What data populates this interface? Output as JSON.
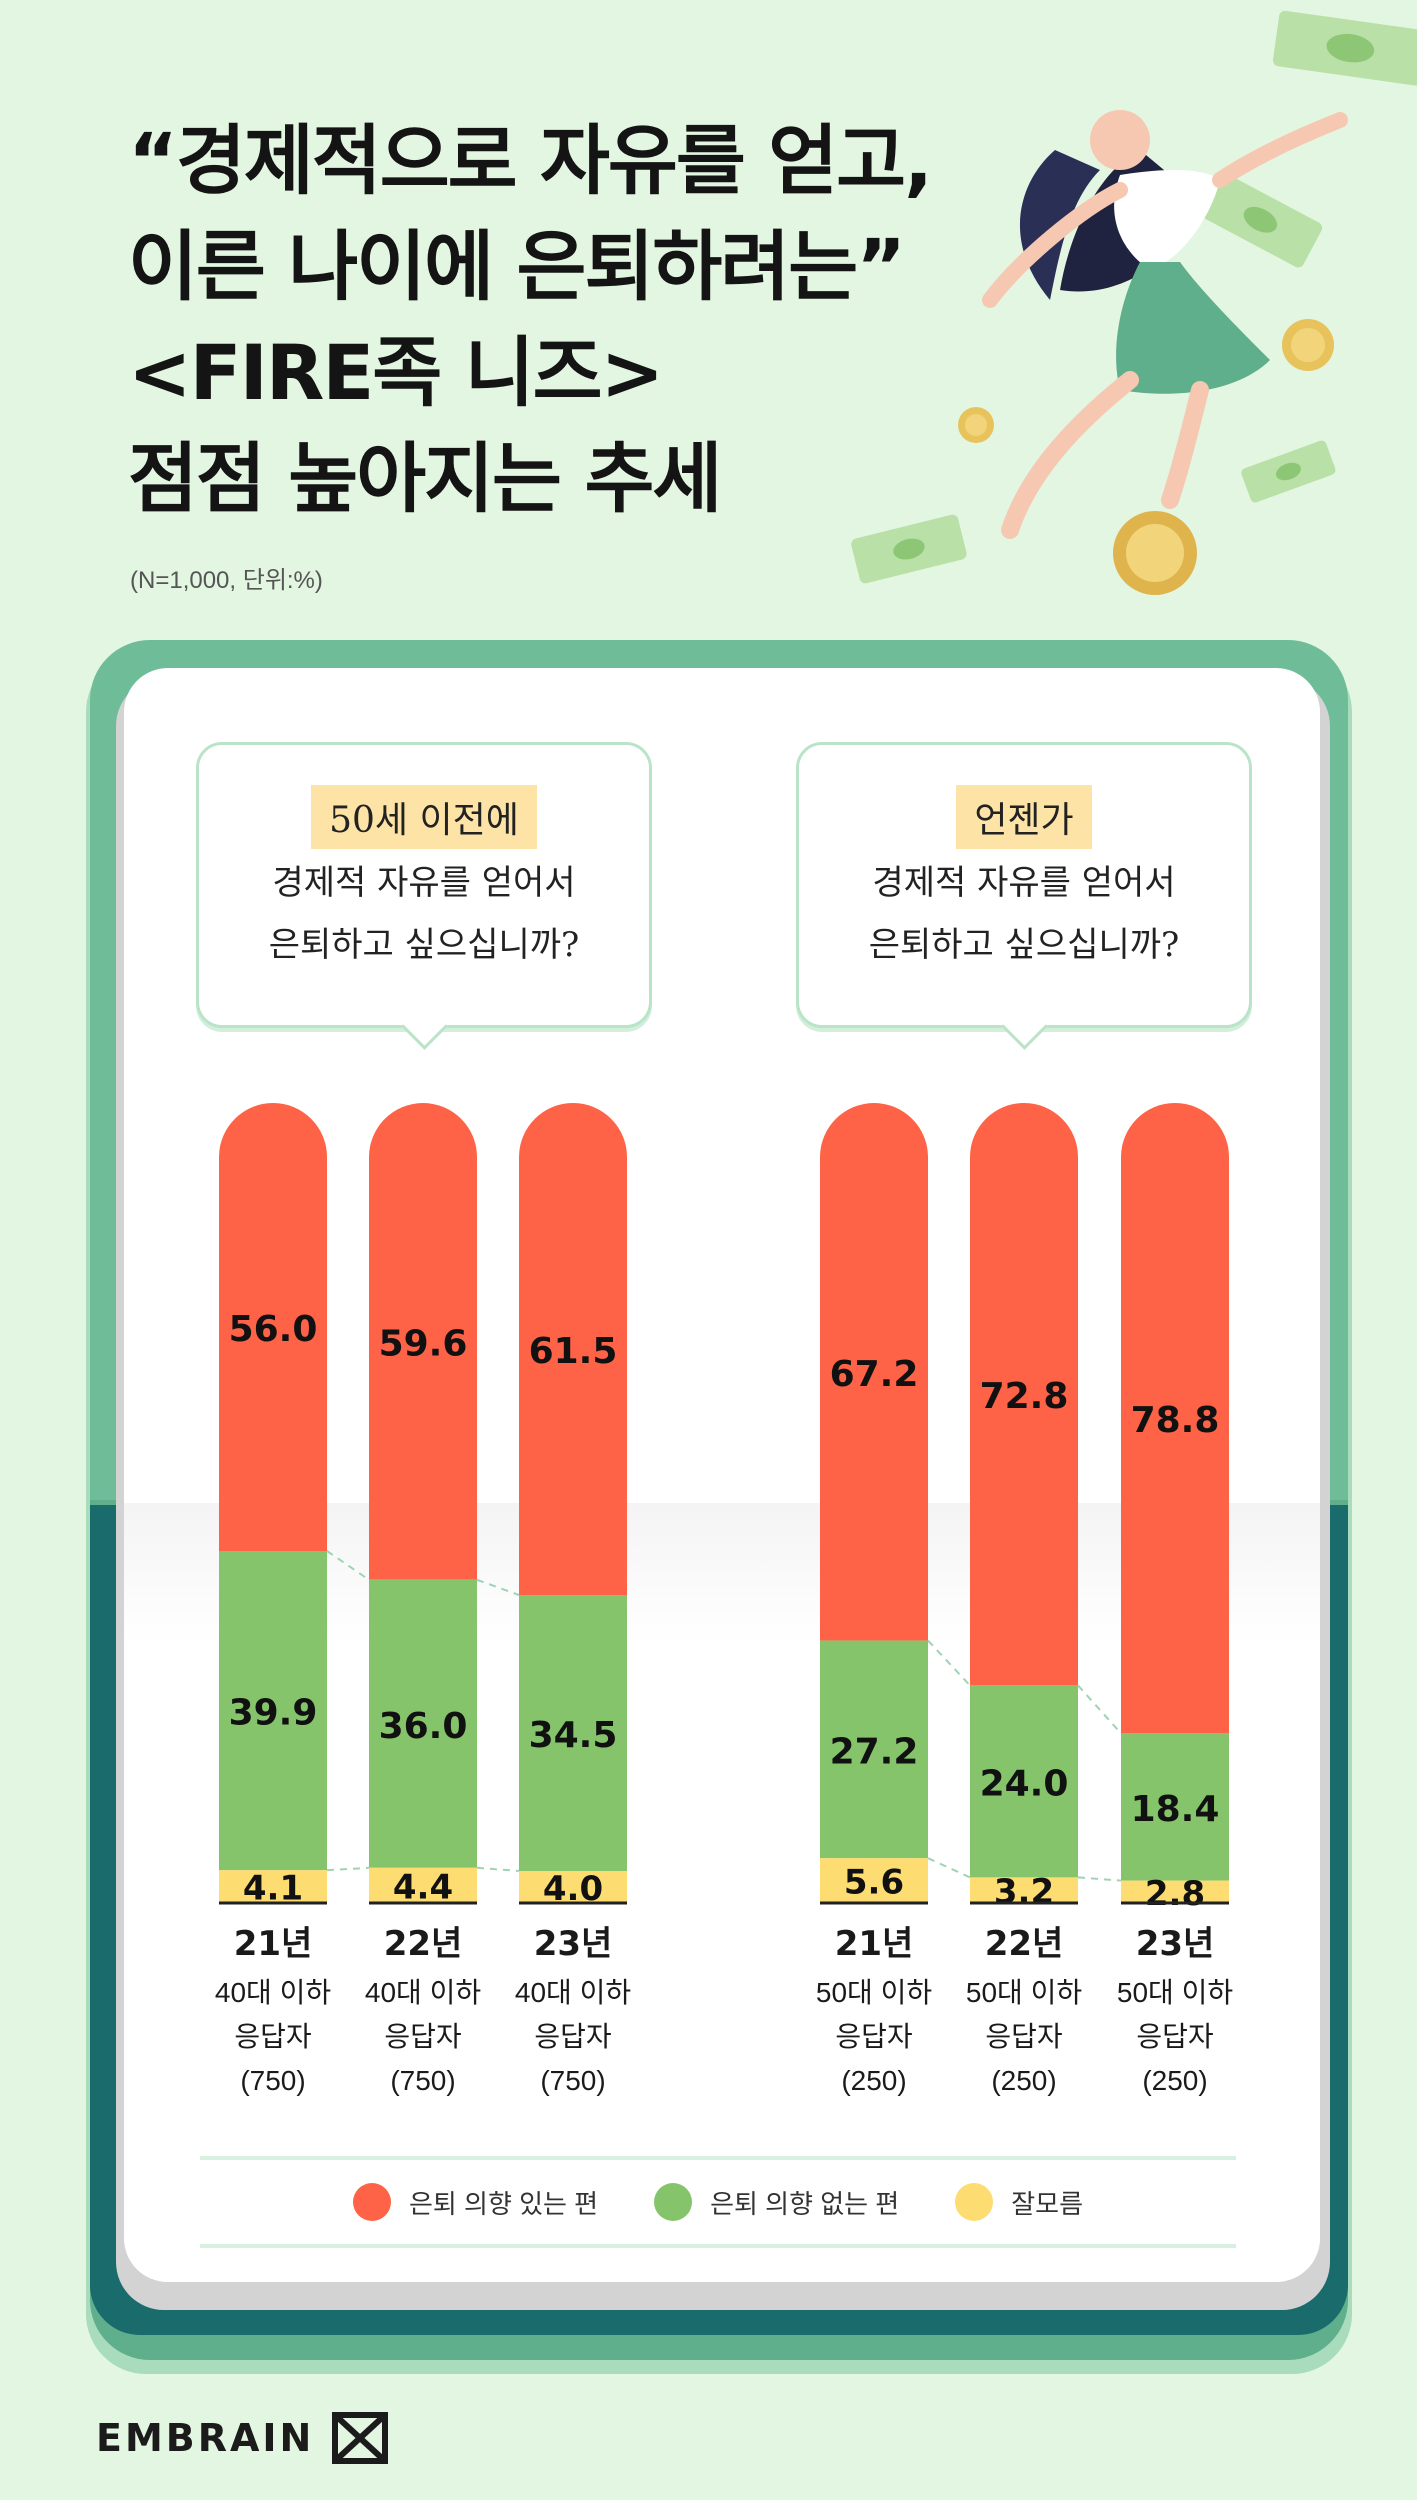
{
  "header": {
    "title_lines": [
      "“경제적으로 자유를 얻고,",
      "이른 나이에 은퇴하려는”",
      "<FIRE족 니즈>",
      "점점 높아지는 추세"
    ],
    "note": "(N=1,000, 단위:%)"
  },
  "questions": {
    "left": {
      "highlight": "50세 이전에",
      "line1": "경제적 자유를 얻어서",
      "line2": "은퇴하고 싶으십니까?"
    },
    "right": {
      "highlight": "언젠가",
      "line1": "경제적 자유를 얻어서",
      "line2": "은퇴하고 싶으십니까?"
    }
  },
  "colors": {
    "yes": "#ff6347",
    "no": "#85c46a",
    "unsure": "#fddc72"
  },
  "chart_data": [
    {
      "type": "bar",
      "stacked": true,
      "unit": "%",
      "categories": [
        {
          "year": "21년",
          "group": "40대 이하",
          "label": "응답자",
          "n": "(750)"
        },
        {
          "year": "22년",
          "group": "40대 이하",
          "label": "응답자",
          "n": "(750)"
        },
        {
          "year": "23년",
          "group": "40대 이하",
          "label": "응답자",
          "n": "(750)"
        }
      ],
      "series": [
        {
          "name": "은퇴 의향 있는 편",
          "values": [
            56.0,
            59.6,
            61.5
          ],
          "labels": [
            "56.0",
            "59.6",
            "61.5"
          ]
        },
        {
          "name": "은퇴 의향 없는 편",
          "values": [
            39.9,
            36.0,
            34.5
          ],
          "labels": [
            "39.9",
            "36.0",
            "34.5"
          ]
        },
        {
          "name": "잘모름",
          "values": [
            4.1,
            4.4,
            4.0
          ],
          "labels": [
            "4.1",
            "4.4",
            "4.0"
          ]
        }
      ],
      "ylim": [
        0,
        100
      ]
    },
    {
      "type": "bar",
      "stacked": true,
      "unit": "%",
      "categories": [
        {
          "year": "21년",
          "group": "50대 이하",
          "label": "응답자",
          "n": "(250)"
        },
        {
          "year": "22년",
          "group": "50대 이하",
          "label": "응답자",
          "n": "(250)"
        },
        {
          "year": "23년",
          "group": "50대 이하",
          "label": "응답자",
          "n": "(250)"
        }
      ],
      "series": [
        {
          "name": "은퇴 의향 있는 편",
          "values": [
            67.2,
            72.8,
            78.8
          ],
          "labels": [
            "67.2",
            "72.8",
            "78.8"
          ]
        },
        {
          "name": "은퇴 의향 없는 편",
          "values": [
            27.2,
            24.0,
            18.4
          ],
          "labels": [
            "27.2",
            "24.0",
            "18.4"
          ]
        },
        {
          "name": "잘모름",
          "values": [
            5.6,
            3.2,
            2.8
          ],
          "labels": [
            "5.6",
            "3.2",
            "2.8"
          ]
        }
      ],
      "ylim": [
        0,
        100
      ]
    }
  ],
  "legend": [
    {
      "label": "은퇴 의향 있는 편",
      "color_key": "yes"
    },
    {
      "label": "은퇴 의향 없는 편",
      "color_key": "no"
    },
    {
      "label": "잘모름",
      "color_key": "unsure"
    }
  ],
  "brand": {
    "name": "EMBRAIN"
  }
}
